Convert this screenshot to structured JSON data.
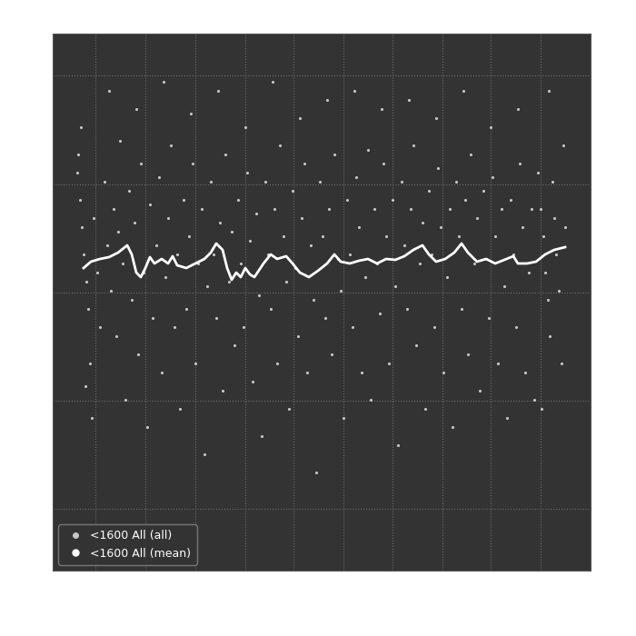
{
  "chart_data": {
    "type": "scatter",
    "xlim": [
      58,
      650
    ],
    "ylim": [
      72,
      663
    ],
    "xticks": [
      105,
      160,
      215,
      270,
      323,
      378,
      432,
      487,
      540,
      595
    ],
    "yticks": [
      140,
      259,
      378,
      497,
      617
    ],
    "grid": true,
    "tick_labels": false,
    "legend": "lower left",
    "series": [
      {
        "name": "<1600 All (all)",
        "type": "scatter",
        "color": "#c8c8c8",
        "marker": "o",
        "x": [
          85,
          88,
          90,
          92,
          95,
          97,
          99,
          101,
          86,
          103,
          107,
          110,
          94,
          89,
          115,
          118,
          122,
          125,
          128,
          132,
          135,
          138,
          120,
          130,
          142,
          145,
          148,
          152,
          155,
          158,
          162,
          165,
          168,
          150,
          172,
          175,
          178,
          182,
          185,
          188,
          192,
          195,
          198,
          180,
          202,
          205,
          208,
          212,
          215,
          218,
          222,
          225,
          228,
          210,
          232,
          235,
          238,
          242,
          245,
          248,
          252,
          255,
          258,
          240,
          262,
          265,
          268,
          272,
          275,
          278,
          282,
          285,
          288,
          270,
          292,
          295,
          298,
          302,
          305,
          308,
          312,
          315,
          318,
          300,
          322,
          325,
          328,
          332,
          335,
          338,
          342,
          345,
          348,
          330,
          352,
          355,
          358,
          362,
          365,
          368,
          372,
          375,
          378,
          360,
          382,
          385,
          388,
          392,
          395,
          398,
          402,
          405,
          408,
          390,
          412,
          415,
          418,
          422,
          425,
          428,
          432,
          435,
          438,
          420,
          442,
          445,
          448,
          452,
          455,
          458,
          462,
          465,
          468,
          450,
          472,
          475,
          478,
          482,
          485,
          488,
          492,
          495,
          498,
          480,
          502,
          505,
          508,
          512,
          515,
          518,
          522,
          525,
          528,
          510,
          532,
          535,
          538,
          542,
          545,
          548,
          552,
          555,
          558,
          540,
          562,
          565,
          568,
          572,
          575,
          578,
          582,
          585,
          588,
          570,
          592,
          595,
          598,
          600,
          603,
          605,
          608,
          610,
          612,
          615,
          618,
          620,
          622,
          596,
          604
        ],
        "values": [
          510,
          480,
          450,
          420,
          390,
          360,
          300,
          240,
          530,
          460,
          400,
          340,
          275,
          560,
          500,
          430,
          380,
          470,
          330,
          545,
          410,
          260,
          600,
          445,
          490,
          370,
          455,
          310,
          520,
          400,
          230,
          475,
          350,
          580,
          430,
          505,
          290,
          395,
          460,
          540,
          340,
          420,
          250,
          610,
          480,
          360,
          440,
          520,
          300,
          410,
          470,
          200,
          385,
          575,
          500,
          420,
          350,
          455,
          270,
          530,
          390,
          445,
          320,
          600,
          480,
          410,
          340,
          510,
          435,
          280,
          465,
          375,
          220,
          560,
          500,
          420,
          360,
          470,
          300,
          540,
          440,
          390,
          250,
          610,
          490,
          405,
          330,
          460,
          520,
          290,
          430,
          370,
          180,
          570,
          500,
          440,
          350,
          470,
          310,
          530,
          415,
          380,
          240,
          590,
          480,
          420,
          340,
          505,
          450,
          290,
          395,
          535,
          260,
          600,
          470,
          410,
          355,
          520,
          440,
          300,
          480,
          385,
          210,
          580,
          500,
          430,
          360,
          470,
          540,
          320,
          410,
          455,
          250,
          590,
          490,
          420,
          340,
          515,
          450,
          290,
          395,
          470,
          230,
          570,
          500,
          440,
          360,
          480,
          310,
          530,
          410,
          460,
          270,
          600,
          490,
          415,
          350,
          505,
          440,
          300,
          470,
          385,
          240,
          560,
          480,
          420,
          340,
          520,
          450,
          290,
          400,
          470,
          260,
          580,
          510,
          470,
          440,
          400,
          370,
          330,
          500,
          460,
          420,
          380,
          300,
          540,
          450,
          250,
          600
        ]
      },
      {
        "name": "<1600 All (mean)",
        "type": "line",
        "color": "#ffffff",
        "line_style": "solid",
        "x": [
          92,
          100,
          110,
          120,
          130,
          140,
          145,
          150,
          155,
          160,
          165,
          170,
          178,
          185,
          190,
          195,
          205,
          215,
          225,
          232,
          238,
          245,
          250,
          255,
          260,
          265,
          270,
          275,
          280,
          290,
          298,
          305,
          315,
          322,
          330,
          340,
          350,
          360,
          368,
          375,
          385,
          395,
          405,
          415,
          425,
          435,
          445,
          455,
          465,
          472,
          480,
          490,
          500,
          508,
          515,
          525,
          535,
          545,
          555,
          565,
          570,
          580,
          590,
          600,
          610,
          622
        ],
        "values": [
          405,
          412,
          415,
          417,
          422,
          430,
          420,
          400,
          395,
          405,
          417,
          410,
          415,
          410,
          418,
          408,
          405,
          410,
          415,
          422,
          432,
          425,
          405,
          392,
          400,
          395,
          405,
          398,
          395,
          410,
          420,
          415,
          418,
          410,
          400,
          395,
          402,
          410,
          420,
          412,
          410,
          413,
          415,
          410,
          415,
          414,
          418,
          425,
          430,
          420,
          412,
          415,
          422,
          432,
          422,
          412,
          415,
          410,
          414,
          418,
          410,
          410,
          412,
          420,
          425,
          428
        ]
      }
    ]
  }
}
